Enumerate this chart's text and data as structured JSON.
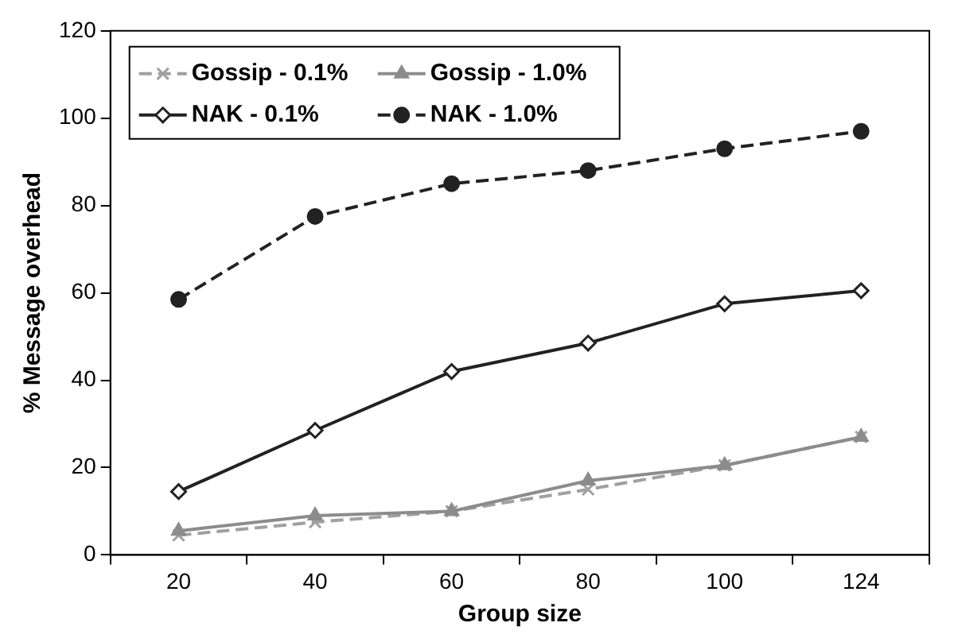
{
  "chart_data": {
    "type": "line",
    "xlabel": "Group size",
    "ylabel": "% Message overhead",
    "categories": [
      "20",
      "40",
      "60",
      "80",
      "100",
      "124"
    ],
    "series": [
      {
        "name": "Gossip - 0.1%",
        "color": "#a0a0a0",
        "marker": "cross",
        "line_style": "dashed",
        "values": [
          4.5,
          7.5,
          10,
          15,
          20.5,
          27
        ]
      },
      {
        "name": "Gossip - 1.0%",
        "color": "#8c8c8c",
        "marker": "triangle",
        "line_style": "solid",
        "values": [
          5.5,
          9,
          10,
          17,
          20.5,
          27
        ]
      },
      {
        "name": "NAK - 0.1%",
        "color": "#222222",
        "marker": "diamond",
        "line_style": "solid",
        "values": [
          14.5,
          28.5,
          42,
          48.5,
          57.5,
          60.5
        ]
      },
      {
        "name": "NAK - 1.0%",
        "color": "#222222",
        "marker": "circle",
        "line_style": "dashed",
        "values": [
          58.5,
          77.5,
          85,
          88,
          93,
          97
        ]
      }
    ],
    "ylim": [
      0,
      120
    ],
    "yticks": [
      0,
      20,
      40,
      60,
      80,
      100,
      120
    ],
    "grid": false,
    "legend": "top left"
  }
}
